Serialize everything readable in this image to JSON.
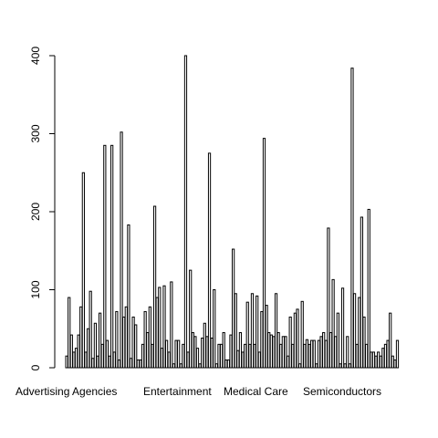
{
  "chart_data": {
    "type": "bar",
    "title": "",
    "xlabel": "",
    "ylabel": "",
    "ylim": [
      0,
      400
    ],
    "yticks": [
      0,
      100,
      200,
      300,
      400
    ],
    "category_labels": [
      {
        "label": "Advertising Agencies",
        "bar_index": 0
      },
      {
        "label": "Entertainment",
        "bar_index": 48
      },
      {
        "label": "Medical Care",
        "bar_index": 80
      },
      {
        "label": "Semiconductors",
        "bar_index": 111
      }
    ],
    "values": [
      15,
      90,
      42,
      20,
      25,
      42,
      78,
      250,
      20,
      50,
      98,
      12,
      57,
      15,
      70,
      30,
      285,
      35,
      15,
      285,
      20,
      72,
      10,
      302,
      65,
      78,
      183,
      12,
      65,
      55,
      10,
      10,
      30,
      72,
      45,
      78,
      30,
      207,
      90,
      103,
      25,
      105,
      35,
      20,
      110,
      5,
      35,
      35,
      5,
      30,
      400,
      20,
      125,
      45,
      40,
      25,
      5,
      38,
      57,
      40,
      275,
      38,
      100,
      5,
      30,
      30,
      45,
      10,
      10,
      42,
      152,
      95,
      22,
      45,
      20,
      30,
      84,
      30,
      95,
      30,
      92,
      20,
      72,
      294,
      80,
      45,
      42,
      40,
      95,
      45,
      30,
      40,
      40,
      15,
      65,
      30,
      70,
      75,
      5,
      85,
      30,
      36,
      30,
      35,
      35,
      5,
      35,
      40,
      45,
      35,
      179,
      45,
      113,
      40,
      70,
      5,
      102,
      5,
      40,
      5,
      384,
      95,
      30,
      90,
      193,
      65,
      30,
      203,
      20,
      20,
      15,
      20,
      15,
      25,
      30,
      35,
      70,
      15,
      10,
      35
    ]
  }
}
